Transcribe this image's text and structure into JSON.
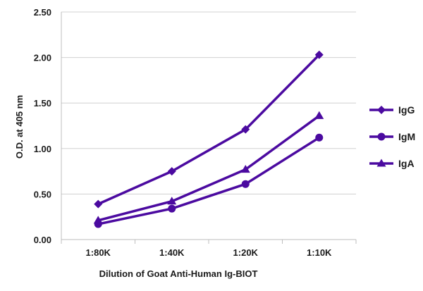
{
  "chart_data": {
    "type": "line",
    "title": "",
    "xlabel": "Dilution of Goat Anti-Human Ig-BIOT",
    "ylabel": "O.D. at 405 nm",
    "categories": [
      "1:80K",
      "1:40K",
      "1:20K",
      "1:10K"
    ],
    "ylim": [
      0,
      2.5
    ],
    "yticks": [
      "0.00",
      "0.50",
      "1.00",
      "1.50",
      "2.00",
      "2.50"
    ],
    "grid": "horizontal",
    "legend_position": "right",
    "series": [
      {
        "name": "IgG",
        "marker": "diamond",
        "color": "#4b0aa0",
        "values": [
          0.39,
          0.75,
          1.21,
          2.03
        ]
      },
      {
        "name": "IgM",
        "marker": "circle",
        "color": "#4b0aa0",
        "values": [
          0.17,
          0.34,
          0.61,
          1.12
        ]
      },
      {
        "name": "IgA",
        "marker": "triangle",
        "color": "#4b0aa0",
        "values": [
          0.21,
          0.42,
          0.77,
          1.36
        ]
      }
    ]
  }
}
